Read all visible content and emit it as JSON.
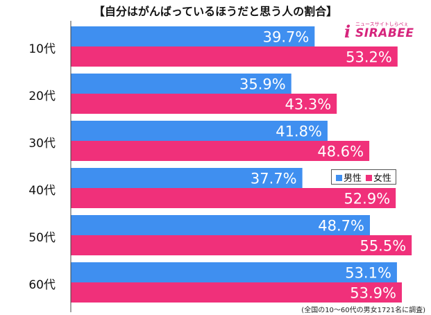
{
  "chart_data": {
    "type": "bar",
    "orientation": "horizontal",
    "title": "【自分はがんばっているほうだと思う人の割合】",
    "categories": [
      "10代",
      "20代",
      "30代",
      "40代",
      "50代",
      "60代"
    ],
    "series": [
      {
        "name": "男性",
        "color": "#3f8ff0",
        "values": [
          39.7,
          35.9,
          41.8,
          37.7,
          48.7,
          53.1
        ]
      },
      {
        "name": "女性",
        "color": "#f0307a",
        "values": [
          53.2,
          43.3,
          48.6,
          52.9,
          55.5,
          53.9
        ]
      }
    ],
    "value_suffix": "%",
    "xlim": [
      0,
      60
    ],
    "grid": false,
    "legend_position": "right"
  },
  "logo": {
    "tagline": "ニュースサイトしらべぇ",
    "wordmark": "SIRABEE",
    "letter": "i"
  },
  "footnote": "(全国の10〜60代の男女1721名に調査)"
}
